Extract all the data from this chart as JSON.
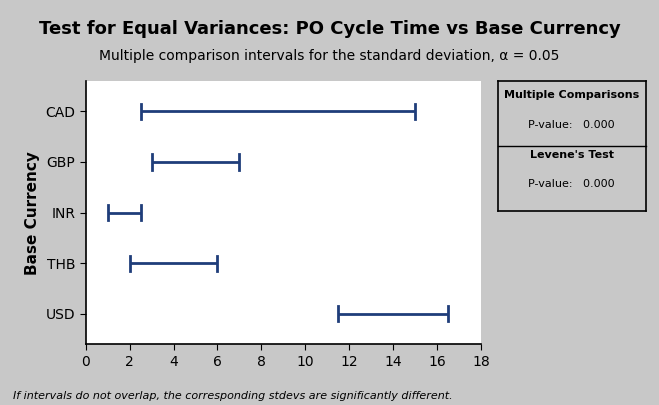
{
  "title": "Test for Equal Variances: PO Cycle Time vs Base Currency",
  "subtitle": "Multiple comparison intervals for the standard deviation, α = 0.05",
  "xlabel": "",
  "ylabel": "Base Currency",
  "categories": [
    "CAD",
    "GBP",
    "INR",
    "THB",
    "USD"
  ],
  "intervals": [
    [
      2.5,
      15.0
    ],
    [
      3.0,
      7.0
    ],
    [
      1.0,
      2.5
    ],
    [
      2.0,
      6.0
    ],
    [
      11.5,
      16.5
    ]
  ],
  "xlim": [
    0,
    18
  ],
  "xticks": [
    0,
    2,
    4,
    6,
    8,
    10,
    12,
    14,
    16,
    18
  ],
  "interval_color": "#1F3D7A",
  "bg_color": "#C8C8C8",
  "plot_bg_color": "#FFFFFF",
  "title_fontsize": 13,
  "subtitle_fontsize": 10,
  "tick_fontsize": 10,
  "label_fontsize": 11,
  "footer_text": "If intervals do not overlap, the corresponding stdevs are significantly different.",
  "legend_title1": "Multiple Comparisons",
  "legend_pvalue1": "P-value:   0.000",
  "legend_title2": "Levene's Test",
  "legend_pvalue2": "P-value:   0.000"
}
